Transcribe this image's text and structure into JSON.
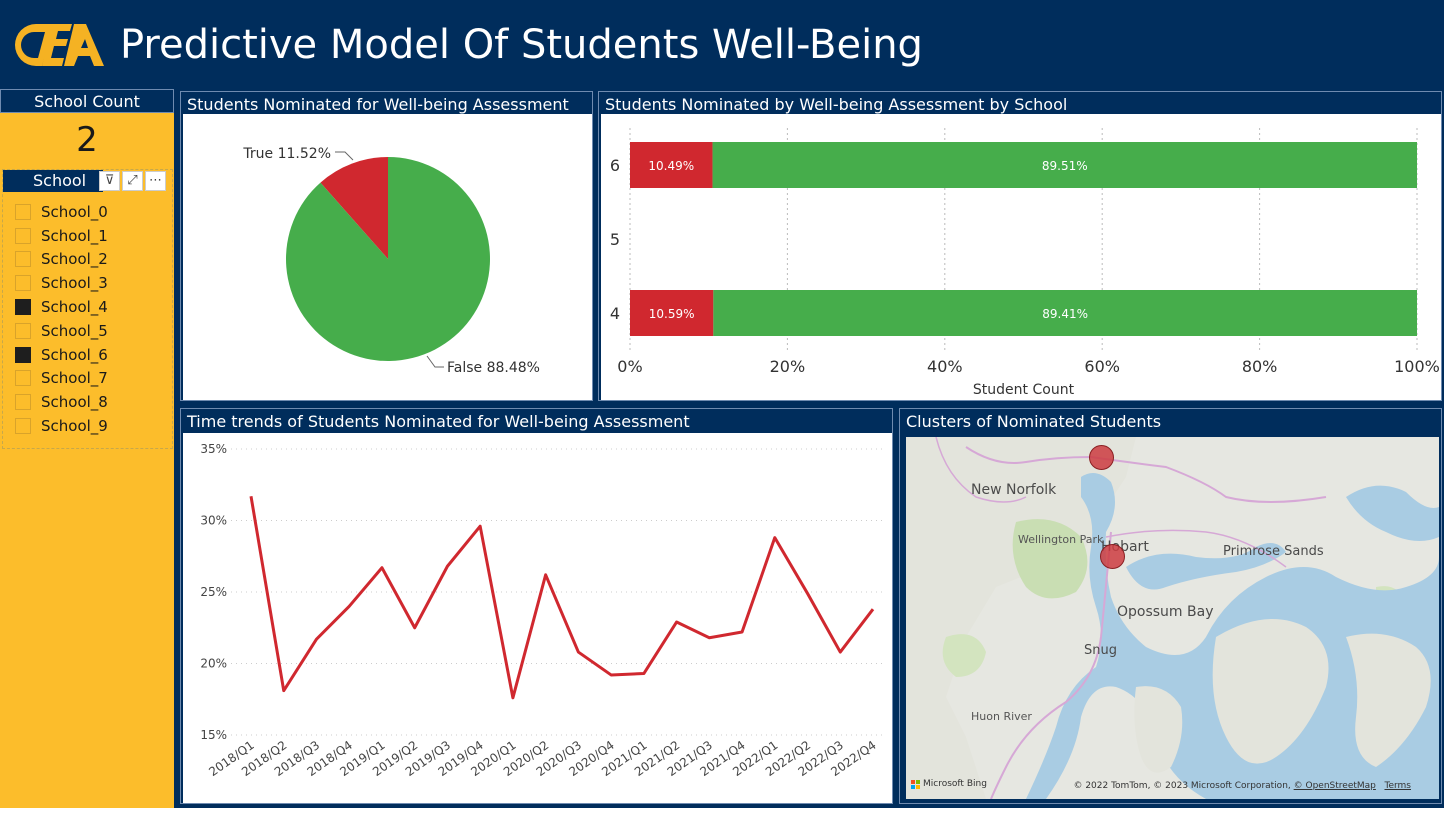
{
  "header": {
    "title": "Predictive Model Of Students Well-Being",
    "logo_icon": "cea-logo-icon",
    "logo_color": "#f5b223"
  },
  "school_count": {
    "label": "School Count",
    "value": "2"
  },
  "slicer": {
    "label": "School",
    "tools": {
      "filter_icon": "filter-icon",
      "focus_icon": "focus-mode-icon",
      "more_icon": "more-options-icon"
    },
    "items": [
      {
        "label": "School_0",
        "checked": false
      },
      {
        "label": "School_1",
        "checked": false
      },
      {
        "label": "School_2",
        "checked": false
      },
      {
        "label": "School_3",
        "checked": false
      },
      {
        "label": "School_4",
        "checked": true
      },
      {
        "label": "School_5",
        "checked": false
      },
      {
        "label": "School_6",
        "checked": true
      },
      {
        "label": "School_7",
        "checked": false
      },
      {
        "label": "School_8",
        "checked": false
      },
      {
        "label": "School_9",
        "checked": false
      }
    ]
  },
  "pie": {
    "title": "Students Nominated for Well-being Assessment",
    "chart_data": {
      "type": "pie",
      "slices": [
        {
          "label": "True 11.52%",
          "value": 11.52,
          "color": "#d0282f"
        },
        {
          "label": "False 88.48%",
          "value": 88.48,
          "color": "#46ad4b"
        }
      ]
    }
  },
  "bar": {
    "title": "Students Nominated by Well-being Assessment by School",
    "chart_data": {
      "type": "bar",
      "orientation": "horizontal-stacked-100",
      "categories": [
        "6",
        "5",
        "4"
      ],
      "series": [
        {
          "values": [
            10.49,
            null,
            10.59
          ],
          "labels": [
            "10.49%",
            "",
            "10.59%"
          ],
          "color": "#d0282f"
        },
        {
          "values": [
            89.51,
            null,
            89.41
          ],
          "labels": [
            "89.51%",
            "",
            "89.41%"
          ],
          "color": "#46ad4b"
        }
      ],
      "xlabel": "Student Count",
      "xticks": [
        "0%",
        "20%",
        "40%",
        "60%",
        "80%",
        "100%"
      ],
      "xlim": [
        0,
        100
      ]
    }
  },
  "line": {
    "title": "Time trends of Students Nominated for Well-being Assessment",
    "chart_data": {
      "type": "line",
      "x": [
        "2018/Q1",
        "2018/Q2",
        "2018/Q3",
        "2018/Q4",
        "2019/Q1",
        "2019/Q2",
        "2019/Q3",
        "2019/Q4",
        "2020/Q1",
        "2020/Q2",
        "2020/Q3",
        "2020/Q4",
        "2021/Q1",
        "2021/Q2",
        "2021/Q3",
        "2021/Q4",
        "2022/Q1",
        "2022/Q2",
        "2022/Q3",
        "2022/Q4"
      ],
      "series": [
        {
          "values": [
            31.7,
            18.1,
            21.7,
            24.0,
            26.7,
            22.5,
            26.8,
            29.6,
            17.6,
            26.2,
            20.8,
            19.2,
            19.3,
            22.9,
            21.8,
            22.2,
            28.8,
            24.9,
            20.8,
            23.8
          ],
          "color": "#d0282f"
        }
      ],
      "yticks": [
        "35%",
        "30%",
        "25%",
        "20%",
        "15%"
      ],
      "ylim": [
        15,
        35
      ],
      "grid": true
    }
  },
  "map": {
    "title": "Clusters of Nominated Students",
    "places": {
      "new_norfolk": "New Norfolk",
      "wellington_park": "Wellington Park",
      "hobart": "Hobart",
      "primrose_sands": "Primrose Sands",
      "opossum_bay": "Opossum Bay",
      "snug": "Snug",
      "huon_river": "Huon River"
    },
    "brand": "Microsoft Bing",
    "credit": "© 2022 TomTom, © 2023 Microsoft Corporation,",
    "credit_link": "© OpenStreetMap",
    "terms": "Terms"
  }
}
